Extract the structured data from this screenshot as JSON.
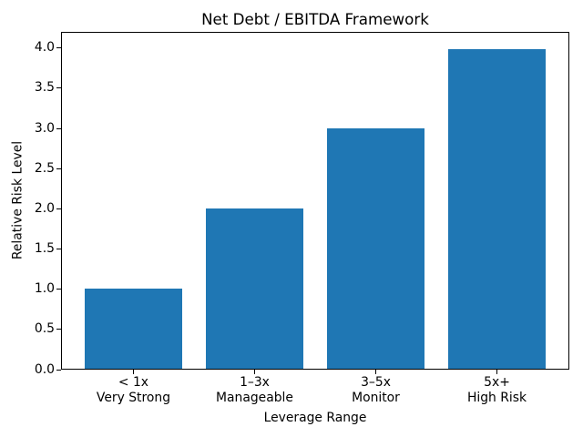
{
  "chart_data": {
    "type": "bar",
    "title": "Net Debt / EBITDA Framework",
    "xlabel": "Leverage Range",
    "ylabel": "Relative Risk Level",
    "categories": [
      "< 1x\nVery Strong",
      "1–3x\nManageable",
      "3–5x\nMonitor",
      "5x+\nHigh Risk"
    ],
    "values": [
      1,
      2,
      3,
      4
    ],
    "ylim": [
      0,
      4.2
    ],
    "yticks": [
      0,
      0.5,
      1,
      1.5,
      2,
      2.5,
      3,
      3.5,
      4
    ],
    "ytick_label_format": "one-decimal",
    "bar_color": "#1f77b4",
    "axis_color": "#000000",
    "background_color": "#ffffff",
    "grid": false,
    "legend": false
  }
}
